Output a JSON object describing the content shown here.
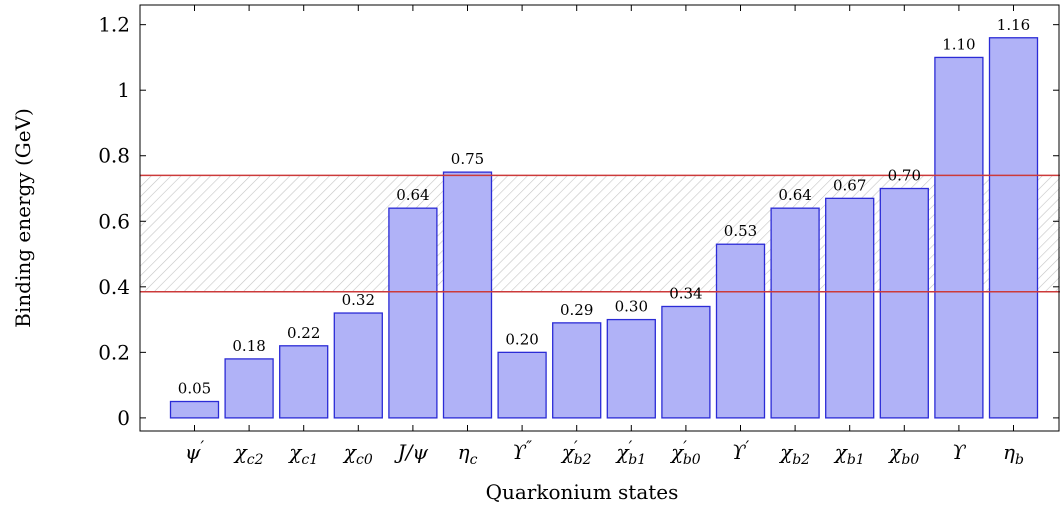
{
  "chart_data": {
    "type": "bar",
    "title": "",
    "xlabel": "Quarkonium states",
    "ylabel": "Binding energy (GeV)",
    "ylim": [
      -0.04,
      1.26
    ],
    "yticks": [
      "0",
      "0.2",
      "0.4",
      "0.6",
      "0.8",
      "1",
      "1.2"
    ],
    "yticks_values": [
      0,
      0.2,
      0.4,
      0.6,
      0.8,
      1.0,
      1.2
    ],
    "categories": [
      {
        "base": "ψ",
        "sup": "′",
        "sub": ""
      },
      {
        "base": "χ",
        "sup": "",
        "sub": "c2"
      },
      {
        "base": "χ",
        "sup": "",
        "sub": "c1"
      },
      {
        "base": "χ",
        "sup": "",
        "sub": "c0"
      },
      {
        "base": "J/ψ",
        "sup": "",
        "sub": ""
      },
      {
        "base": "η",
        "sup": "",
        "sub": "c"
      },
      {
        "base": "ϒ",
        "sup": "″",
        "sub": ""
      },
      {
        "base": "χ",
        "sup": "′",
        "sub": "b2"
      },
      {
        "base": "χ",
        "sup": "′",
        "sub": "b1"
      },
      {
        "base": "χ",
        "sup": "′",
        "sub": "b0"
      },
      {
        "base": "ϒ",
        "sup": "′",
        "sub": ""
      },
      {
        "base": "χ",
        "sup": "",
        "sub": "b2"
      },
      {
        "base": "χ",
        "sup": "",
        "sub": "b1"
      },
      {
        "base": "χ",
        "sup": "",
        "sub": "b0"
      },
      {
        "base": "ϒ",
        "sup": "",
        "sub": ""
      },
      {
        "base": "η",
        "sup": "",
        "sub": "b"
      }
    ],
    "values": [
      0.05,
      0.18,
      0.22,
      0.32,
      0.64,
      0.75,
      0.2,
      0.29,
      0.3,
      0.34,
      0.53,
      0.64,
      0.67,
      0.7,
      1.1,
      1.16
    ],
    "value_labels": [
      "0.05",
      "0.18",
      "0.22",
      "0.32",
      "0.64",
      "0.75",
      "0.20",
      "0.29",
      "0.30",
      "0.34",
      "0.53",
      "0.64",
      "0.67",
      "0.70",
      "1.10",
      "1.16"
    ],
    "band": {
      "lower": 0.385,
      "upper": 0.74
    },
    "grid": false,
    "colors": {
      "bar_fill": "#b0b2f7",
      "bar_stroke": "#2b2bd6",
      "band_line": "#cc3a3a",
      "hatch": "#c4c4c4",
      "axis": "#000000"
    }
  }
}
